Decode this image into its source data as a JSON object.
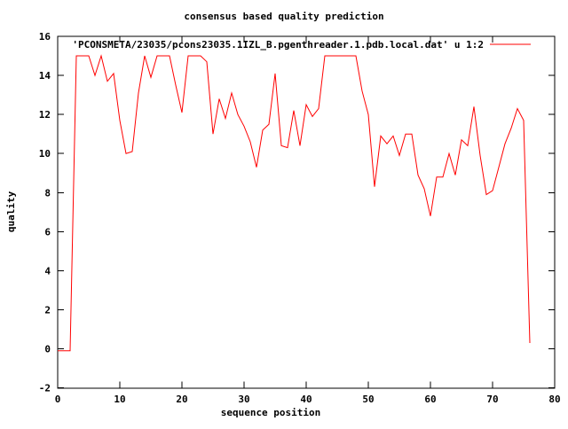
{
  "window": {
    "background": "#ffffff"
  },
  "colors": {
    "series_line": "#ff0000",
    "axis": "#000000",
    "text": "#000000",
    "background": "#ffffff"
  },
  "chart_data": {
    "type": "line",
    "title": "consensus based quality prediction",
    "xlabel": "sequence position",
    "ylabel": "quality",
    "xlim": [
      0,
      80
    ],
    "ylim": [
      -2,
      16
    ],
    "xticks": [
      0,
      10,
      20,
      30,
      40,
      50,
      60,
      70,
      80
    ],
    "yticks": [
      -2,
      0,
      2,
      4,
      6,
      8,
      10,
      12,
      14,
      16
    ],
    "grid": false,
    "legend_position": "top-right-inside",
    "series": [
      {
        "name": "'PCONSMETA/23035/pcons23035.1IZL_B.pgenthreader.1.pdb.local.dat' u 1:2",
        "color": "#ff0000",
        "x": [
          0,
          1,
          2,
          3,
          4,
          5,
          6,
          7,
          8,
          9,
          10,
          11,
          12,
          13,
          14,
          15,
          16,
          17,
          18,
          19,
          20,
          21,
          22,
          23,
          24,
          25,
          26,
          27,
          28,
          29,
          30,
          31,
          32,
          33,
          34,
          35,
          36,
          37,
          38,
          39,
          40,
          41,
          42,
          43,
          44,
          45,
          46,
          47,
          48,
          49,
          50,
          51,
          52,
          53,
          54,
          55,
          56,
          57,
          58,
          59,
          60,
          61,
          62,
          63,
          64,
          65,
          66,
          67,
          68,
          69,
          70,
          71,
          72,
          73,
          74,
          75,
          76
        ],
        "y": [
          -0.1,
          -0.1,
          -0.1,
          15,
          15,
          15,
          14,
          15,
          13.7,
          14.1,
          11.7,
          10,
          10.1,
          13.1,
          15,
          13.9,
          15,
          15,
          15,
          13.5,
          12.1,
          15,
          15,
          15,
          14.7,
          11,
          12.8,
          11.8,
          13.1,
          12,
          11.4,
          10.6,
          9.3,
          11.2,
          11.5,
          14.1,
          10.4,
          10.3,
          12.2,
          10.4,
          12.5,
          11.9,
          12.3,
          15,
          15,
          15,
          15,
          15,
          15,
          13.2,
          12,
          8.3,
          10.9,
          10.5,
          10.9,
          9.9,
          11,
          11,
          8.9,
          8.2,
          6.8,
          8.8,
          8.8,
          10,
          8.9,
          10.7,
          10.4,
          12.4,
          9.9,
          7.9,
          8.1,
          9.3,
          10.5,
          11.3,
          12.3,
          11.7,
          0.3
        ]
      }
    ]
  }
}
